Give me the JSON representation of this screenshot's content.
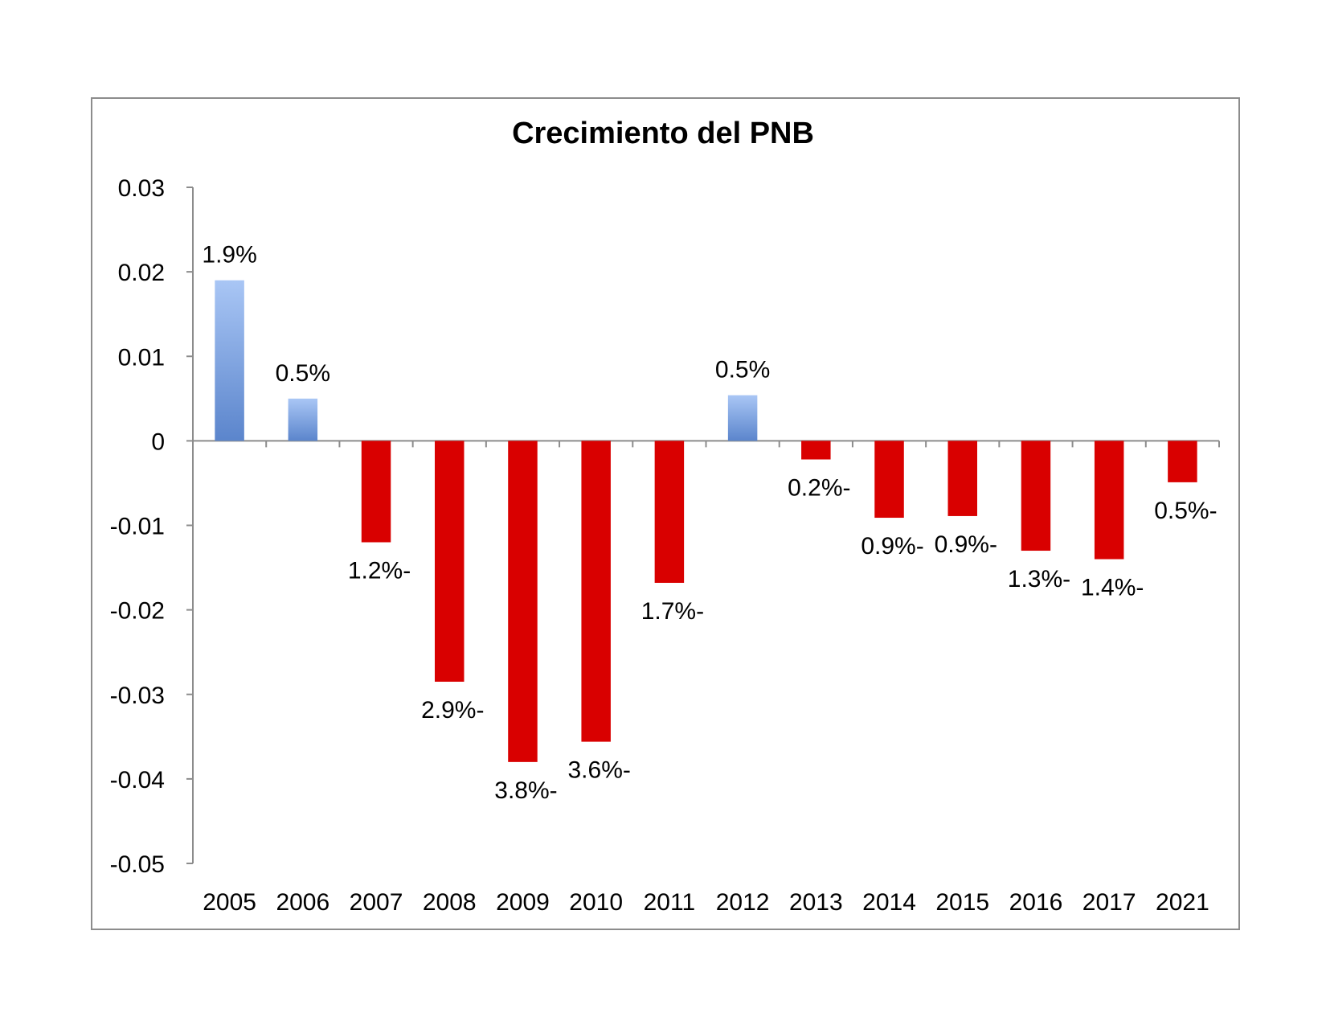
{
  "chart_data": {
    "type": "bar",
    "title": "Crecimiento del PNB",
    "xlabel": "",
    "ylabel": "",
    "categories": [
      "2005",
      "2006",
      "2007",
      "2008",
      "2009",
      "2010",
      "2011",
      "2012",
      "2013",
      "2014",
      "2015",
      "2016",
      "2017",
      "2021"
    ],
    "values": [
      0.019,
      0.005,
      -0.012,
      -0.0285,
      -0.038,
      -0.0356,
      -0.0168,
      0.0054,
      -0.0022,
      -0.0091,
      -0.0089,
      -0.013,
      -0.014,
      -0.0049
    ],
    "data_labels": [
      "1.9%",
      "0.5%",
      "1.2%-",
      "2.9%-",
      "3.8%-",
      "3.6%-",
      "1.7%-",
      "0.5%",
      "0.2%-",
      "0.9%-",
      "0.9%-",
      "1.3%-",
      "1.4%-",
      "0.5%-"
    ],
    "ylim": [
      -0.05,
      0.03
    ],
    "yticks": [
      "0.03",
      "0.02",
      "0.01",
      "0",
      "-0.01",
      "-0.02",
      "-0.03",
      "-0.04",
      "-0.05"
    ],
    "grid": false,
    "legend": "none",
    "colors": {
      "positive_top": "#a9c6f5",
      "positive_bottom": "#5b85cc",
      "negative": "#d90000",
      "axis": "#8c8c8c",
      "frame": "#8c8c8c"
    }
  }
}
